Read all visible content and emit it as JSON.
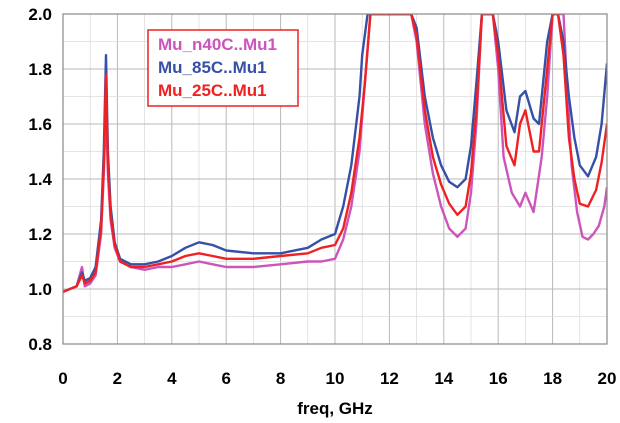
{
  "chart_data": {
    "type": "line",
    "xlabel": "freq, GHz",
    "ylabel": "",
    "xlim": [
      0,
      20
    ],
    "ylim": [
      0.8,
      2.0
    ],
    "x_ticks": [
      "0",
      "2",
      "4",
      "6",
      "8",
      "10",
      "12",
      "14",
      "16",
      "18",
      "20"
    ],
    "y_ticks": [
      "0.8",
      "1.0",
      "1.2",
      "1.4",
      "1.6",
      "1.8",
      "2.0"
    ],
    "grid": true,
    "legend_position": "top-left",
    "series": [
      {
        "name": "Mu_n40C..Mu1",
        "color": "#cc55bb",
        "x": [
          0,
          0.5,
          0.7,
          0.8,
          1.0,
          1.2,
          1.4,
          1.5,
          1.58,
          1.65,
          1.75,
          1.9,
          2.1,
          2.5,
          3.0,
          3.5,
          4.0,
          4.5,
          5.0,
          5.5,
          6.0,
          7.0,
          8.0,
          9.0,
          9.5,
          10.0,
          10.3,
          10.6,
          10.9,
          11.1,
          11.3,
          11.5,
          11.7,
          12.0,
          12.2,
          12.5,
          12.8,
          13.0,
          13.3,
          13.6,
          13.9,
          14.2,
          14.5,
          14.8,
          15.0,
          15.2,
          15.4,
          15.6,
          15.8,
          16.0,
          16.2,
          16.5,
          16.8,
          17.0,
          17.3,
          17.6,
          17.8,
          18.0,
          18.2,
          18.4,
          18.5,
          18.7,
          18.9,
          19.1,
          19.3,
          19.5,
          19.7,
          19.9,
          20.0
        ],
        "values": [
          0.99,
          1.01,
          1.08,
          1.01,
          1.02,
          1.05,
          1.2,
          1.42,
          1.66,
          1.42,
          1.25,
          1.15,
          1.1,
          1.08,
          1.07,
          1.08,
          1.08,
          1.09,
          1.1,
          1.09,
          1.08,
          1.08,
          1.09,
          1.1,
          1.1,
          1.11,
          1.18,
          1.3,
          1.5,
          1.75,
          2.0,
          2.0,
          2.0,
          2.0,
          2.0,
          2.0,
          2.0,
          1.9,
          1.6,
          1.42,
          1.3,
          1.22,
          1.19,
          1.22,
          1.35,
          1.6,
          2.0,
          2.0,
          2.0,
          1.8,
          1.48,
          1.35,
          1.3,
          1.35,
          1.28,
          1.48,
          1.7,
          2.0,
          2.0,
          2.0,
          1.8,
          1.45,
          1.28,
          1.19,
          1.18,
          1.2,
          1.23,
          1.3,
          1.37
        ]
      },
      {
        "name": "Mu_85C..Mu1",
        "color": "#3650a8",
        "x": [
          0,
          0.5,
          0.7,
          0.8,
          1.0,
          1.2,
          1.4,
          1.5,
          1.58,
          1.65,
          1.75,
          1.9,
          2.1,
          2.5,
          3.0,
          3.5,
          4.0,
          4.5,
          5.0,
          5.5,
          6.0,
          7.0,
          8.0,
          9.0,
          9.5,
          10.0,
          10.3,
          10.6,
          10.9,
          11.0,
          11.2,
          11.5,
          12.0,
          12.2,
          12.5,
          12.8,
          13.0,
          13.3,
          13.6,
          13.9,
          14.2,
          14.5,
          14.8,
          15.0,
          15.2,
          15.4,
          15.6,
          15.8,
          16.0,
          16.3,
          16.6,
          16.8,
          17.0,
          17.3,
          17.5,
          17.8,
          18.0,
          18.2,
          18.4,
          18.6,
          18.8,
          19.0,
          19.3,
          19.6,
          19.8,
          20.0
        ],
        "values": [
          0.99,
          1.01,
          1.06,
          1.03,
          1.04,
          1.08,
          1.25,
          1.5,
          1.85,
          1.5,
          1.3,
          1.17,
          1.11,
          1.09,
          1.09,
          1.1,
          1.12,
          1.15,
          1.17,
          1.16,
          1.14,
          1.13,
          1.13,
          1.15,
          1.18,
          1.2,
          1.3,
          1.45,
          1.7,
          1.85,
          2.0,
          2.0,
          2.0,
          2.0,
          2.0,
          2.0,
          1.95,
          1.7,
          1.55,
          1.45,
          1.39,
          1.37,
          1.4,
          1.52,
          1.75,
          2.0,
          2.0,
          2.0,
          1.9,
          1.65,
          1.57,
          1.7,
          1.72,
          1.62,
          1.6,
          1.9,
          2.0,
          2.0,
          1.9,
          1.7,
          1.55,
          1.45,
          1.41,
          1.48,
          1.6,
          1.82
        ]
      },
      {
        "name": "Mu_25C..Mu1",
        "color": "#ee2222",
        "x": [
          0,
          0.5,
          0.7,
          0.8,
          1.0,
          1.2,
          1.4,
          1.5,
          1.58,
          1.65,
          1.75,
          1.9,
          2.1,
          2.5,
          3.0,
          3.5,
          4.0,
          4.5,
          5.0,
          5.5,
          6.0,
          7.0,
          8.0,
          9.0,
          9.5,
          10.0,
          10.3,
          10.6,
          10.9,
          11.1,
          11.3,
          11.5,
          12.0,
          12.2,
          12.5,
          12.8,
          13.0,
          13.3,
          13.6,
          13.9,
          14.2,
          14.5,
          14.8,
          15.0,
          15.2,
          15.4,
          15.6,
          15.8,
          16.0,
          16.3,
          16.6,
          16.8,
          17.0,
          17.3,
          17.5,
          17.8,
          18.0,
          18.2,
          18.4,
          18.6,
          18.8,
          19.0,
          19.3,
          19.6,
          19.8,
          20.0
        ],
        "values": [
          0.99,
          1.01,
          1.05,
          1.02,
          1.03,
          1.06,
          1.22,
          1.45,
          1.78,
          1.45,
          1.27,
          1.16,
          1.1,
          1.08,
          1.08,
          1.09,
          1.1,
          1.12,
          1.13,
          1.12,
          1.11,
          1.11,
          1.12,
          1.13,
          1.15,
          1.16,
          1.22,
          1.35,
          1.55,
          1.75,
          2.0,
          2.0,
          2.0,
          2.0,
          2.0,
          2.0,
          1.92,
          1.65,
          1.48,
          1.38,
          1.31,
          1.27,
          1.3,
          1.42,
          1.65,
          2.0,
          2.0,
          2.0,
          1.85,
          1.52,
          1.45,
          1.6,
          1.65,
          1.5,
          1.5,
          1.8,
          2.0,
          2.0,
          1.85,
          1.55,
          1.4,
          1.31,
          1.3,
          1.36,
          1.46,
          1.6
        ]
      }
    ]
  }
}
